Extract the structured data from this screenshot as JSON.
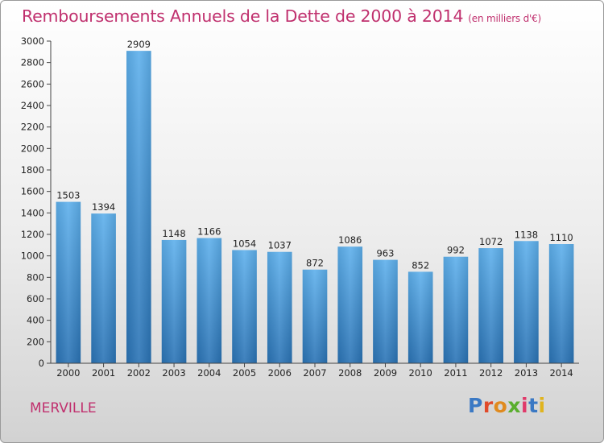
{
  "header": {
    "title": "Remboursements Annuels de la Dette de 2000 à 2014",
    "unit": "(en milliers d'€)"
  },
  "footer": {
    "commune": "MERVILLE",
    "brand": "Proxiti"
  },
  "colors": {
    "title": "#c0306e",
    "bar_top": "#5eb0ec",
    "bar_bottom": "#2a73b5",
    "logo_letters": [
      "#3b79c4",
      "#e04a2a",
      "#e08a1e",
      "#5aae2e",
      "#e03a6a",
      "#3b79c4",
      "#e0b41e"
    ]
  },
  "chart_data": {
    "type": "bar",
    "title": "Remboursements Annuels de la Dette de 2000 à 2014",
    "subtitle": "(en milliers d'€)",
    "categories": [
      "2000",
      "2001",
      "2002",
      "2003",
      "2004",
      "2005",
      "2006",
      "2007",
      "2008",
      "2009",
      "2010",
      "2011",
      "2012",
      "2013",
      "2014"
    ],
    "values": [
      1503,
      1394,
      2909,
      1148,
      1166,
      1054,
      1037,
      872,
      1086,
      963,
      852,
      992,
      1072,
      1138,
      1110
    ],
    "yticks": [
      0,
      200,
      400,
      600,
      800,
      1000,
      1200,
      1400,
      1600,
      1800,
      2000,
      2200,
      2400,
      2600,
      2800,
      3000
    ],
    "ylim": [
      0,
      3000
    ],
    "grid": false,
    "legend": "none",
    "data_labels": true
  }
}
